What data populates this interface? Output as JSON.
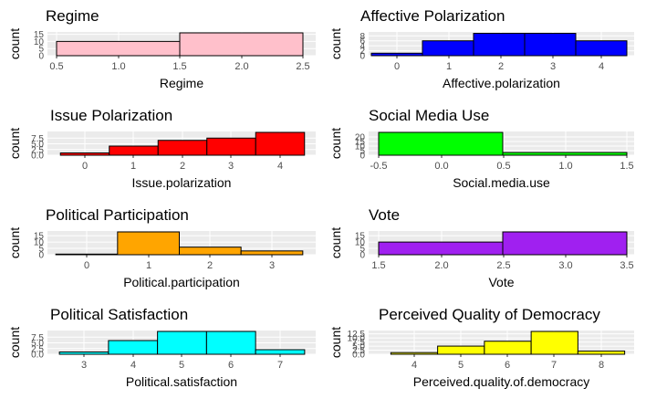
{
  "chart_data": [
    {
      "type": "bar",
      "title": "Regime",
      "xlabel": "Regime",
      "ylabel": "count",
      "fill": "#ffc0cb",
      "xlim": [
        0.5,
        2.5
      ],
      "ylim": [
        0,
        16
      ],
      "x_ticks": [
        "0.5",
        "1.0",
        "1.5",
        "2.0",
        "2.5"
      ],
      "y_ticks": [
        "0",
        "5",
        "10",
        "15"
      ],
      "bins": [
        {
          "left": 0.5,
          "right": 1.5,
          "count": 10
        },
        {
          "left": 1.5,
          "right": 2.5,
          "count": 16
        }
      ]
    },
    {
      "type": "bar",
      "title": "Affective Polarization",
      "xlabel": "Affective.polarization",
      "ylabel": "count",
      "fill": "#0000ff",
      "xlim": [
        -0.5,
        4.5
      ],
      "ylim": [
        0,
        9.2
      ],
      "x_ticks": [
        "0",
        "1",
        "2",
        "3",
        "4"
      ],
      "y_ticks": [
        "0",
        "2",
        "4",
        "6",
        "8"
      ],
      "bins": [
        {
          "left": -0.5,
          "right": 0.5,
          "count": 1
        },
        {
          "left": 0.5,
          "right": 1.5,
          "count": 6
        },
        {
          "left": 1.5,
          "right": 2.5,
          "count": 9
        },
        {
          "left": 2.5,
          "right": 3.5,
          "count": 9
        },
        {
          "left": 3.5,
          "right": 4.5,
          "count": 6
        }
      ]
    },
    {
      "type": "bar",
      "title": "Issue Polarization",
      "xlabel": "Issue.polarization",
      "ylabel": "count",
      "fill": "#ff0000",
      "xlim": [
        -0.5,
        4.5
      ],
      "ylim": [
        0,
        10
      ],
      "x_ticks": [
        "0",
        "1",
        "2",
        "3",
        "4"
      ],
      "y_ticks": [
        "0.0",
        "2.5",
        "5.0",
        "7.5"
      ],
      "bins": [
        {
          "left": -0.5,
          "right": 0.5,
          "count": 1
        },
        {
          "left": 0.5,
          "right": 1.5,
          "count": 4
        },
        {
          "left": 1.5,
          "right": 2.5,
          "count": 6.5
        },
        {
          "left": 2.5,
          "right": 3.5,
          "count": 7.5
        },
        {
          "left": 3.5,
          "right": 4.5,
          "count": 10
        }
      ]
    },
    {
      "type": "bar",
      "title": "Social Media Use",
      "xlabel": "Social.media.use",
      "ylabel": "count",
      "fill": "#00ff00",
      "xlim": [
        -0.5,
        1.5
      ],
      "ylim": [
        0,
        25
      ],
      "x_ticks": [
        "-0.5",
        "0.0",
        "0.5",
        "1.0",
        "1.5"
      ],
      "y_ticks": [
        "0",
        "5",
        "10",
        "15",
        "20"
      ],
      "bins": [
        {
          "left": -0.5,
          "right": 0.5,
          "count": 25
        },
        {
          "left": 0.5,
          "right": 1.5,
          "count": 3
        }
      ]
    },
    {
      "type": "bar",
      "title": "Political Participation",
      "xlabel": "Political.participation",
      "ylabel": "count",
      "fill": "#ffa500",
      "xlim": [
        -0.5,
        3.5
      ],
      "ylim": [
        0,
        18
      ],
      "x_ticks": [
        "0",
        "1",
        "2",
        "3"
      ],
      "y_ticks": [
        "0",
        "5",
        "10",
        "15"
      ],
      "bins": [
        {
          "left": -0.5,
          "right": 0.5,
          "count": 0.5
        },
        {
          "left": 0.5,
          "right": 1.5,
          "count": 18
        },
        {
          "left": 1.5,
          "right": 2.5,
          "count": 6
        },
        {
          "left": 2.5,
          "right": 3.5,
          "count": 3
        }
      ]
    },
    {
      "type": "bar",
      "title": "Vote",
      "xlabel": "Vote",
      "ylabel": "count",
      "fill": "#a020f0",
      "xlim": [
        1.5,
        3.5
      ],
      "ylim": [
        0,
        18
      ],
      "x_ticks": [
        "1.5",
        "2.0",
        "2.5",
        "3.0",
        "3.5"
      ],
      "y_ticks": [
        "0",
        "5",
        "10",
        "15"
      ],
      "bins": [
        {
          "left": 1.5,
          "right": 2.5,
          "count": 10
        },
        {
          "left": 2.5,
          "right": 3.5,
          "count": 18
        }
      ]
    },
    {
      "type": "bar",
      "title": "Political Satisfaction",
      "xlabel": "Political.satisfaction",
      "ylabel": "count",
      "fill": "#00ffff",
      "xlim": [
        2.5,
        7.5
      ],
      "ylim": [
        0,
        10
      ],
      "x_ticks": [
        "3",
        "4",
        "5",
        "6",
        "7"
      ],
      "y_ticks": [
        "0.0",
        "2.5",
        "5.0",
        "7.5"
      ],
      "bins": [
        {
          "left": 2.5,
          "right": 3.5,
          "count": 1
        },
        {
          "left": 3.5,
          "right": 4.5,
          "count": 6
        },
        {
          "left": 4.5,
          "right": 5.5,
          "count": 10
        },
        {
          "left": 5.5,
          "right": 6.5,
          "count": 10
        },
        {
          "left": 6.5,
          "right": 7.5,
          "count": 2
        }
      ]
    },
    {
      "type": "bar",
      "title": "Perceived Quality of Democracy",
      "xlabel": "Perceived.quality.of.democracy",
      "ylabel": "count",
      "fill": "#ffff00",
      "xlim": [
        3.5,
        8.5
      ],
      "ylim": [
        0,
        14
      ],
      "x_ticks": [
        "4",
        "5",
        "6",
        "7",
        "8"
      ],
      "y_ticks": [
        "0.0",
        "2.5",
        "5.0",
        "7.5",
        "10.0",
        "12.5"
      ],
      "bins": [
        {
          "left": 3.5,
          "right": 4.5,
          "count": 1
        },
        {
          "left": 4.5,
          "right": 5.5,
          "count": 5
        },
        {
          "left": 5.5,
          "right": 6.5,
          "count": 8
        },
        {
          "left": 6.5,
          "right": 7.5,
          "count": 14
        },
        {
          "left": 7.5,
          "right": 8.5,
          "count": 2
        }
      ]
    }
  ]
}
